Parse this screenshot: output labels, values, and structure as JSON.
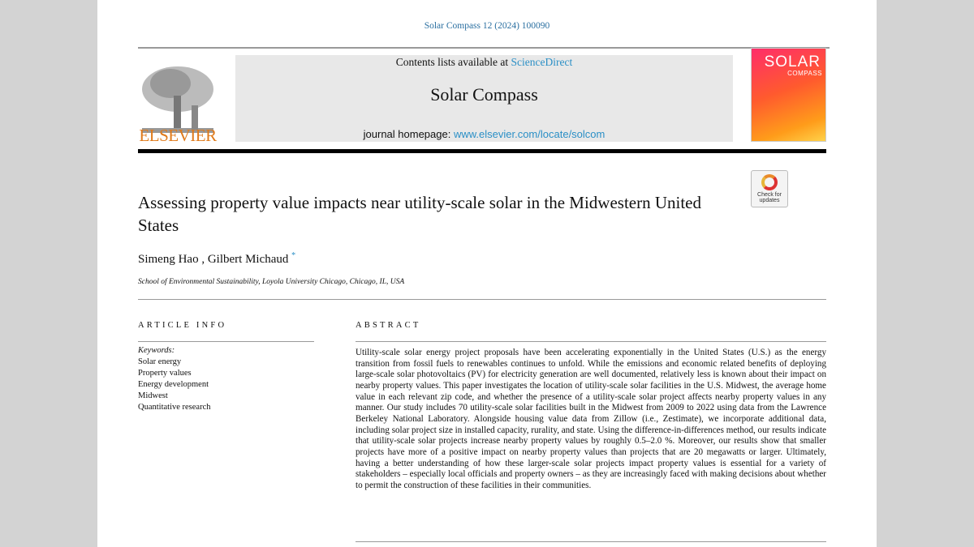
{
  "citation": "Solar Compass 12 (2024) 100090",
  "header": {
    "contents_prefix": "Contents lists available at ",
    "contents_link": "ScienceDirect",
    "journal_title": "Solar Compass",
    "homepage_prefix": "journal homepage: ",
    "homepage_link": "www.elsevier.com/locate/solcom",
    "publisher": "ELSEVIER",
    "cover_title": "SOLAR",
    "cover_subtitle": "COMPASS"
  },
  "check_updates": "Check for updates",
  "article": {
    "title": "Assessing property value impacts near utility-scale solar in the Midwestern United States",
    "authors": "Simeng Hao , Gilbert Michaud",
    "author_mark": "*",
    "affiliation": "School of Environmental Sustainability, Loyola University Chicago, Chicago, IL, USA"
  },
  "article_info": {
    "heading": "ARTICLE INFO",
    "keywords_label": "Keywords:",
    "keywords": [
      "Solar energy",
      "Property values",
      "Energy development",
      "Midwest",
      "Quantitative research"
    ]
  },
  "abstract": {
    "heading": "ABSTRACT",
    "text": "Utility-scale solar energy project proposals have been accelerating exponentially in the United States (U.S.) as the energy transition from fossil fuels to renewables continues to unfold. While the emissions and economic related benefits of deploying large-scale solar photovoltaics (PV) for electricity generation are well documented, rela­tively less is known about their impact on nearby property values. This paper investigates the location of utility-scale solar facilities in the U.S. Midwest, the average home value in each relevant zip code, and whether the presence of a utility-scale solar project affects nearby property values in any manner. Our study includes 70 utility-scale solar facilities built in the Midwest from 2009 to 2022 using data from the Lawrence Berkeley National Laboratory. Alongside housing value data from Zillow (i.e., Zestimate), we incorporate additional data, including solar project size in installed capacity, rurality, and state. Using the difference-in-differences method, our results indicate that utility-scale solar projects increase nearby property values by roughly 0.5–2.0 %. Moreover, our results show that smaller projects have more of a positive impact on nearby property values than projects that are 20 megawatts or larger. Ultimately, having a better understanding of how these larger-scale solar projects impact property values is essential for a variety of stakeholders – especially local officials and property owners – as they are increasingly faced with making decisions about whether to permit the construction of these facilities in their communities."
  }
}
